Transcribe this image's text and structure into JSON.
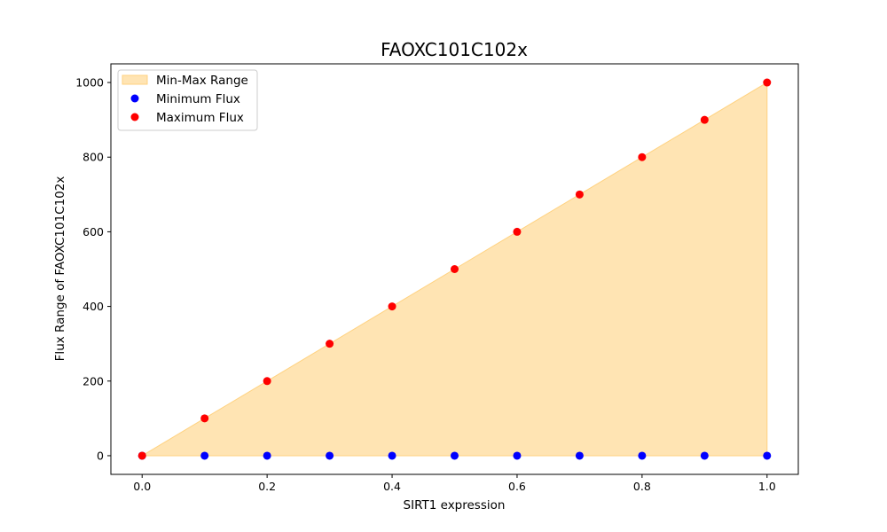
{
  "chart_data": {
    "type": "scatter",
    "title": "FAOXC101C102x",
    "xlabel": "SIRT1 expression",
    "ylabel": "Flux Range of FAOXC101C102x",
    "xlim": [
      -0.05,
      1.05
    ],
    "ylim": [
      -50,
      1050
    ],
    "xticks": [
      0.0,
      0.2,
      0.4,
      0.6,
      0.8,
      1.0
    ],
    "xtick_labels": [
      "0.0",
      "0.2",
      "0.4",
      "0.6",
      "0.8",
      "1.0"
    ],
    "yticks": [
      0,
      200,
      400,
      600,
      800,
      1000
    ],
    "ytick_labels": [
      "0",
      "200",
      "400",
      "600",
      "800",
      "1000"
    ],
    "grid": false,
    "legend_position": "top-left",
    "x": [
      0.0,
      0.1,
      0.2,
      0.3,
      0.4,
      0.5,
      0.6,
      0.7,
      0.8,
      0.9,
      1.0
    ],
    "series": [
      {
        "name": "Min-Max Range",
        "kind": "fill_between",
        "color": "#ffe4b3",
        "edge_color": "#ffd280"
      },
      {
        "name": "Minimum Flux",
        "kind": "scatter",
        "color": "#0000ff",
        "values": [
          0,
          0,
          0,
          0,
          0,
          0,
          0,
          0,
          0,
          0,
          0
        ]
      },
      {
        "name": "Maximum Flux",
        "kind": "scatter",
        "color": "#ff0000",
        "values": [
          0,
          100,
          200,
          300,
          400,
          500,
          600,
          700,
          800,
          900,
          1000
        ]
      }
    ]
  }
}
